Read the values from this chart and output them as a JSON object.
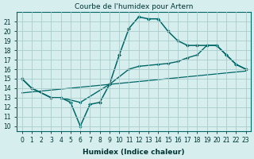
{
  "title": "Courbe de l'humidex pour Artern",
  "xlabel": "Humidex (Indice chaleur)",
  "background_color": "#d6eeee",
  "grid_color": "#aacccc",
  "line_color": "#006666",
  "xlim": [
    -0.5,
    23.5
  ],
  "ylim": [
    9.5,
    22.0
  ],
  "yticks": [
    10,
    11,
    12,
    13,
    14,
    15,
    16,
    17,
    18,
    19,
    20,
    21
  ],
  "xticks": [
    0,
    1,
    2,
    3,
    4,
    5,
    6,
    7,
    8,
    9,
    10,
    11,
    12,
    13,
    14,
    15,
    16,
    17,
    18,
    19,
    20,
    21,
    22,
    23
  ],
  "line1_x": [
    0,
    1,
    3,
    4,
    5,
    6,
    7,
    8,
    9,
    10,
    11,
    12,
    13,
    14,
    15,
    16,
    17,
    18,
    19,
    20,
    21,
    22,
    23
  ],
  "line1_y": [
    15,
    14,
    13,
    13,
    12.5,
    10,
    12.3,
    12.5,
    14.4,
    17.5,
    20.3,
    21.5,
    21.3,
    21.3,
    20.0,
    19.0,
    18.5,
    18.5,
    18.5,
    18.5,
    17.5,
    16.5,
    16.0
  ],
  "line2_x": [
    0,
    1,
    3,
    4,
    6,
    9,
    11,
    12,
    14,
    15,
    16,
    17,
    18,
    19,
    20,
    21,
    22,
    23
  ],
  "line2_y": [
    15,
    14,
    13,
    13,
    12.5,
    14.4,
    16.0,
    16.3,
    16.5,
    16.6,
    16.8,
    17.2,
    17.5,
    18.5,
    18.5,
    17.5,
    16.5,
    16.0
  ],
  "line3_x": [
    0,
    23
  ],
  "line3_y": [
    13.5,
    15.8
  ]
}
